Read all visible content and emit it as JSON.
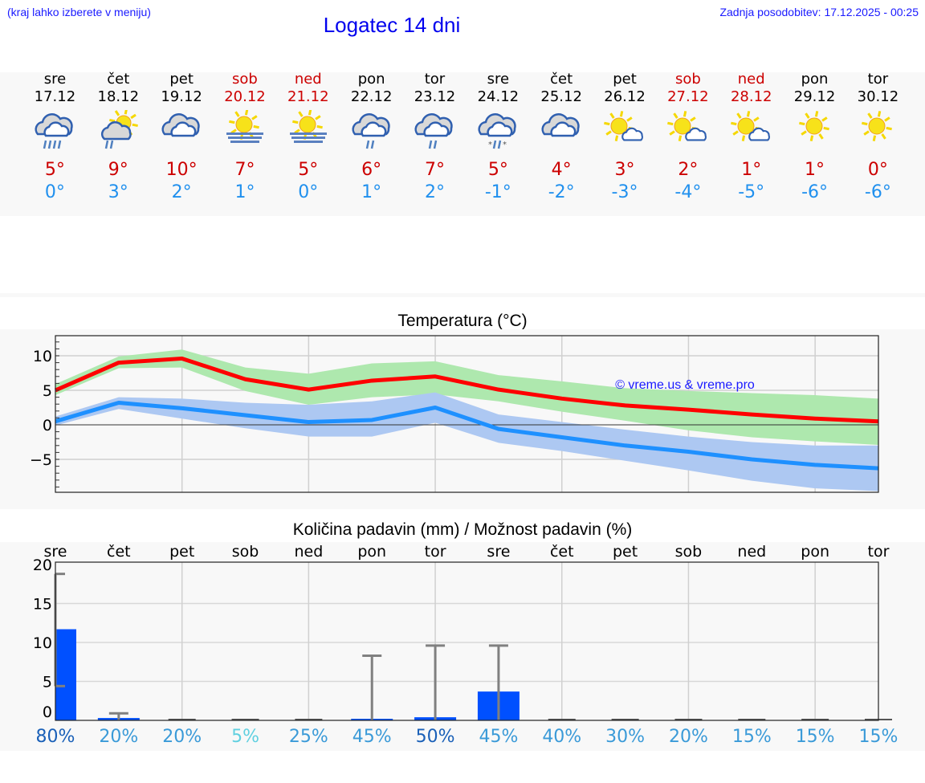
{
  "header": {
    "hint": "(kraj lahko izberete v meniju)",
    "title": "Logatec 14 dni",
    "updated": "Zadnja posodobitev: 17.12.2025 - 00:25"
  },
  "days": [
    {
      "name": "sre",
      "date": "17.12",
      "icon": "cloud-rain-icon",
      "max": "5°",
      "min": "0°",
      "weekend": false
    },
    {
      "name": "čet",
      "date": "18.12",
      "icon": "sun-cloud-rain-icon",
      "max": "9°",
      "min": "3°",
      "weekend": false
    },
    {
      "name": "pet",
      "date": "19.12",
      "icon": "cloudy-icon",
      "max": "10°",
      "min": "2°",
      "weekend": false
    },
    {
      "name": "sob",
      "date": "20.12",
      "icon": "sun-fog-icon",
      "max": "7°",
      "min": "1°",
      "weekend": true
    },
    {
      "name": "ned",
      "date": "21.12",
      "icon": "sun-fog-icon",
      "max": "5°",
      "min": "0°",
      "weekend": true
    },
    {
      "name": "pon",
      "date": "22.12",
      "icon": "cloud-light-rain-icon",
      "max": "6°",
      "min": "1°",
      "weekend": false
    },
    {
      "name": "tor",
      "date": "23.12",
      "icon": "cloud-light-rain-icon",
      "max": "7°",
      "min": "2°",
      "weekend": false
    },
    {
      "name": "sre",
      "date": "24.12",
      "icon": "cloud-sleet-icon",
      "max": "5°",
      "min": "-1°",
      "weekend": false
    },
    {
      "name": "čet",
      "date": "25.12",
      "icon": "cloudy-icon",
      "max": "4°",
      "min": "-2°",
      "weekend": false
    },
    {
      "name": "pet",
      "date": "26.12",
      "icon": "sun-small-cloud-icon",
      "max": "3°",
      "min": "-3°",
      "weekend": false
    },
    {
      "name": "sob",
      "date": "27.12",
      "icon": "sun-small-cloud-icon",
      "max": "2°",
      "min": "-4°",
      "weekend": true
    },
    {
      "name": "ned",
      "date": "28.12",
      "icon": "sun-small-cloud-icon",
      "max": "1°",
      "min": "-5°",
      "weekend": true
    },
    {
      "name": "pon",
      "date": "29.12",
      "icon": "sun-icon",
      "max": "1°",
      "min": "-6°",
      "weekend": false
    },
    {
      "name": "tor",
      "date": "30.12",
      "icon": "sun-icon",
      "max": "0°",
      "min": "-6°",
      "weekend": false
    }
  ],
  "temp_chart": {
    "title": "Temperatura (°C)",
    "watermark": "© vreme.us & vreme.pro"
  },
  "precip_chart": {
    "title": "Količina padavin (mm) / Možnost padavin (%)"
  },
  "colors": {
    "max_line": "#ff0000",
    "max_band": "#aee8ae",
    "min_line": "#1e90ff",
    "min_band": "#adc8f2",
    "bar": "#0050ff",
    "errorbar": "#808080"
  },
  "chart_data": [
    {
      "type": "line",
      "title": "Temperatura (°C)",
      "xlabel": "",
      "ylabel": "",
      "categories": [
        "17.12",
        "18.12",
        "19.12",
        "20.12",
        "21.12",
        "22.12",
        "23.12",
        "24.12",
        "25.12",
        "26.12",
        "27.12",
        "28.12",
        "29.12",
        "30.12"
      ],
      "ylim": [
        -9.8,
        12.9
      ],
      "yticks": [
        -5,
        0,
        5,
        10
      ],
      "grid": true,
      "series": [
        {
          "name": "max",
          "color": "#ff0000",
          "values": [
            5.0,
            9.0,
            9.6,
            6.6,
            5.1,
            6.4,
            7.0,
            5.1,
            3.8,
            2.8,
            2.2,
            1.5,
            0.9,
            0.5
          ],
          "band_high": [
            5.9,
            9.9,
            10.9,
            8.3,
            7.4,
            8.9,
            9.2,
            7.2,
            6.3,
            5.3,
            4.9,
            4.6,
            4.3,
            3.8
          ],
          "band_low": [
            4.3,
            8.2,
            8.3,
            4.9,
            2.9,
            4.0,
            4.4,
            3.4,
            1.9,
            0.6,
            -0.8,
            -1.8,
            -2.4,
            -2.9
          ]
        },
        {
          "name": "min",
          "color": "#1e90ff",
          "values": [
            0.5,
            3.2,
            2.4,
            1.4,
            0.4,
            0.7,
            2.5,
            -0.6,
            -1.8,
            -3.0,
            -3.9,
            -5.0,
            -5.8,
            -6.3
          ],
          "band_high": [
            1.2,
            4.0,
            3.8,
            3.2,
            2.9,
            3.4,
            4.7,
            1.5,
            0.4,
            -0.7,
            -1.7,
            -2.5,
            -3.0,
            -3.0
          ],
          "band_low": [
            -0.1,
            2.3,
            0.9,
            -0.5,
            -1.7,
            -1.7,
            0.3,
            -2.6,
            -3.8,
            -5.2,
            -6.6,
            -8.1,
            -9.2,
            -9.6
          ]
        }
      ],
      "annotations": [
        "© vreme.us & vreme.pro"
      ]
    },
    {
      "type": "bar",
      "title": "Količina padavin (mm) / Možnost padavin (%)",
      "categories": [
        "sre",
        "čet",
        "pet",
        "sob",
        "ned",
        "pon",
        "tor",
        "sre",
        "čet",
        "pet",
        "sob",
        "ned",
        "pon",
        "tor"
      ],
      "ylim": [
        0,
        20
      ],
      "yticks": [
        0,
        5,
        10,
        15,
        20
      ],
      "grid": true,
      "series": [
        {
          "name": "precipitation_mm",
          "values": [
            11.7,
            0.3,
            0,
            0,
            0,
            0.2,
            0.4,
            3.7,
            0,
            0,
            0,
            0,
            0,
            0
          ]
        },
        {
          "name": "precipitation_max_mm",
          "values": [
            18.8,
            0.9,
            0,
            0,
            0,
            8.3,
            9.6,
            9.6,
            0,
            0,
            0,
            0,
            0,
            0
          ]
        },
        {
          "name": "precipitation_min_mm",
          "values": [
            4.4,
            0,
            0,
            0,
            0,
            0,
            0,
            0,
            0,
            0,
            0,
            0,
            0,
            0
          ]
        }
      ],
      "probability_pct": [
        "80%",
        "20%",
        "20%",
        "5%",
        "25%",
        "45%",
        "50%",
        "45%",
        "40%",
        "30%",
        "20%",
        "15%",
        "15%",
        "15%"
      ]
    }
  ]
}
